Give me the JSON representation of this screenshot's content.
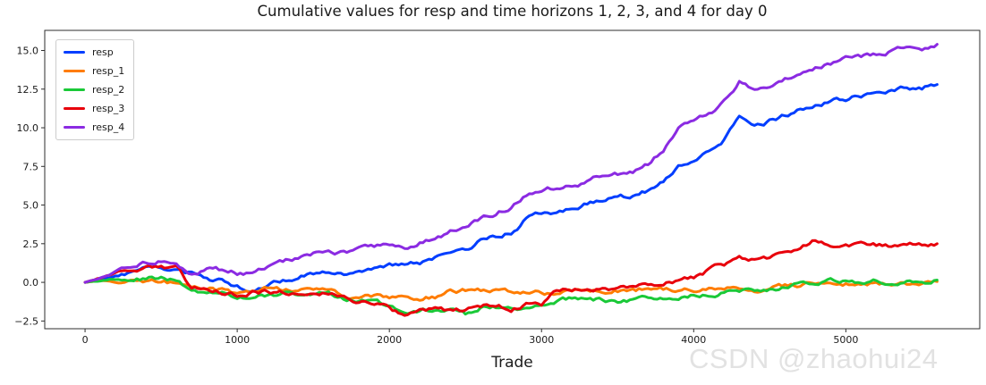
{
  "title": "Cumulative values for resp and time horizons 1, 2, 3, and 4 for day 0",
  "watermark": "CSDN @zhaohui24",
  "colors": {
    "axis": "#2e2e2e",
    "text": "#1a1a1a",
    "watermark": "#e2e2e2",
    "background": "#ffffff"
  },
  "chart_data": {
    "type": "line",
    "title": "Cumulative values for resp and time horizons 1, 2, 3, and 4 for day 0",
    "xlabel": "Trade",
    "ylabel": "",
    "xlim": [
      -265,
      5880
    ],
    "ylim": [
      -3.0,
      16.3
    ],
    "xticks": [
      0,
      1000,
      2000,
      3000,
      4000,
      5000
    ],
    "yticks": [
      -2.5,
      0.0,
      2.5,
      5.0,
      7.5,
      10.0,
      12.5,
      15.0
    ],
    "grid": false,
    "legend_position": "upper-left",
    "x": [
      0,
      100,
      200,
      300,
      400,
      500,
      600,
      700,
      800,
      900,
      1000,
      1100,
      1200,
      1300,
      1400,
      1500,
      1600,
      1700,
      1800,
      1900,
      2000,
      2100,
      2200,
      2300,
      2400,
      2500,
      2600,
      2700,
      2800,
      2900,
      3000,
      3100,
      3200,
      3300,
      3400,
      3500,
      3600,
      3700,
      3800,
      3900,
      4000,
      4100,
      4200,
      4300,
      4400,
      4500,
      4600,
      4700,
      4800,
      4900,
      5000,
      5100,
      5200,
      5300,
      5400,
      5500,
      5600
    ],
    "series": [
      {
        "name": "resp",
        "color": "#023EFF",
        "values": [
          0,
          0.2,
          0.4,
          0.6,
          0.8,
          0.9,
          0.7,
          0.5,
          0.3,
          0.1,
          -0.3,
          -0.5,
          -0.1,
          0.2,
          0.3,
          0.5,
          0.8,
          0.6,
          0.8,
          1.0,
          1.1,
          1.3,
          1.2,
          1.5,
          1.7,
          2.0,
          2.7,
          2.9,
          3.2,
          4.1,
          4.4,
          4.5,
          4.8,
          5.1,
          5.3,
          5.5,
          5.6,
          5.9,
          6.6,
          7.6,
          7.9,
          8.4,
          9.2,
          10.6,
          10.1,
          10.4,
          10.8,
          11.2,
          11.5,
          11.7,
          11.9,
          12.1,
          12.3,
          12.5,
          12.6,
          12.6,
          12.8
        ]
      },
      {
        "name": "resp_1",
        "color": "#FF7C00",
        "values": [
          0,
          0.1,
          0.1,
          0.05,
          0.1,
          0.05,
          0,
          -0.3,
          -0.4,
          -0.5,
          -0.7,
          -0.6,
          -0.45,
          -0.5,
          -0.4,
          -0.35,
          -0.5,
          -0.8,
          -0.9,
          -0.85,
          -1.0,
          -1.05,
          -1.0,
          -0.9,
          -0.6,
          -0.55,
          -0.5,
          -0.55,
          -0.6,
          -0.65,
          -0.6,
          -0.7,
          -0.6,
          -0.6,
          -0.55,
          -0.5,
          -0.4,
          -0.45,
          -0.5,
          -0.5,
          -0.45,
          -0.45,
          -0.4,
          -0.3,
          -0.4,
          -0.35,
          -0.3,
          -0.25,
          -0.1,
          -0.2,
          -0.15,
          -0.1,
          -0.1,
          -0.05,
          -0.05,
          0,
          0.05
        ]
      },
      {
        "name": "resp_2",
        "color": "#1AC938",
        "values": [
          0,
          0.1,
          0.2,
          0.25,
          0.3,
          0.25,
          0.2,
          -0.5,
          -0.6,
          -0.75,
          -0.9,
          -1.0,
          -0.8,
          -0.75,
          -0.8,
          -0.7,
          -0.8,
          -1.1,
          -1.2,
          -1.2,
          -1.5,
          -1.9,
          -1.8,
          -1.7,
          -1.75,
          -2.1,
          -1.7,
          -1.6,
          -1.7,
          -1.6,
          -1.55,
          -1.3,
          -1.1,
          -1.1,
          -1.15,
          -1.2,
          -1.1,
          -1.0,
          -0.95,
          -0.9,
          -0.85,
          -0.8,
          -0.7,
          -0.55,
          -0.5,
          -0.4,
          -0.3,
          -0.15,
          0.0,
          0.1,
          0.05,
          0.05,
          0.1,
          0.05,
          0.1,
          0.1,
          0.15
        ]
      },
      {
        "name": "resp_3",
        "color": "#E8000B",
        "values": [
          0,
          0.3,
          0.6,
          0.9,
          1.0,
          1.1,
          0.9,
          -0.3,
          -0.5,
          -0.6,
          -0.9,
          -0.7,
          -0.6,
          -0.7,
          -0.6,
          -0.55,
          -0.6,
          -1.0,
          -1.3,
          -1.4,
          -1.6,
          -2.2,
          -1.9,
          -1.8,
          -1.9,
          -1.8,
          -1.5,
          -1.5,
          -1.7,
          -1.4,
          -1.5,
          -0.5,
          -0.4,
          -0.5,
          -0.45,
          -0.3,
          -0.4,
          -0.2,
          -0.1,
          0.1,
          0.3,
          0.8,
          1.1,
          1.7,
          1.4,
          1.6,
          1.9,
          2.2,
          2.7,
          2.4,
          2.45,
          2.4,
          2.35,
          2.4,
          2.45,
          2.4,
          2.5
        ]
      },
      {
        "name": "resp_4",
        "color": "#8B2BE2",
        "values": [
          0,
          0.3,
          0.7,
          1.1,
          1.3,
          1.4,
          1.2,
          0.7,
          0.8,
          0.75,
          0.6,
          0.5,
          1.0,
          1.3,
          1.6,
          1.9,
          2.2,
          1.9,
          2.1,
          2.3,
          2.4,
          2.3,
          2.6,
          2.9,
          3.3,
          3.6,
          4.1,
          4.4,
          4.9,
          5.7,
          5.9,
          6.1,
          6.3,
          6.5,
          6.9,
          7.0,
          7.2,
          7.6,
          8.6,
          9.9,
          10.3,
          10.9,
          11.6,
          12.95,
          12.3,
          12.7,
          13.1,
          13.6,
          13.9,
          14.2,
          14.5,
          14.6,
          14.8,
          15.0,
          15.1,
          15.1,
          15.4
        ]
      }
    ]
  }
}
